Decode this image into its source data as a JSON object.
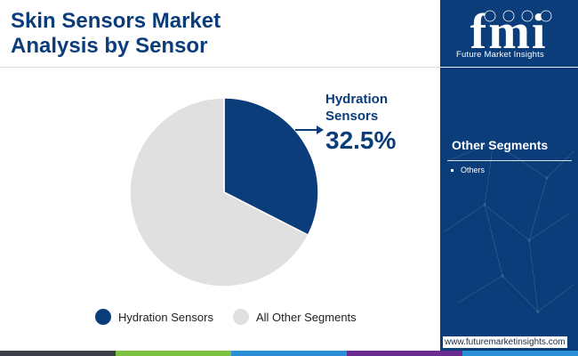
{
  "header": {
    "title_line1": "Skin Sensors Market",
    "title_line2": "Analysis by Sensor"
  },
  "chart_data": {
    "type": "pie",
    "title": "Skin Sensors Market Analysis by Sensor",
    "categories": [
      "Hydration Sensors",
      "All Other Segments"
    ],
    "values": [
      32.5,
      67.5
    ],
    "colors": [
      "#0b3d7a",
      "#e0e0e0"
    ],
    "legend_position": "bottom",
    "annotations": [
      {
        "category": "Hydration Sensors",
        "label": "Hydration Sensors",
        "value_text": "32.5%"
      }
    ]
  },
  "legend": {
    "items": [
      {
        "label": "Hydration Sensors",
        "color": "#0b3d7a"
      },
      {
        "label": "All Other Segments",
        "color": "#e0e0e0"
      }
    ]
  },
  "callout": {
    "label_line1": "Hydration",
    "label_line2": "Sensors",
    "value": "32.5%"
  },
  "panel": {
    "logo_letters": "fmi",
    "logo_tagline": "Future Market Insights",
    "segments_heading": "Other Segments",
    "segments": [
      "Others"
    ]
  },
  "footer": {
    "website": "www.futuremarketinsights.com"
  },
  "colors": {
    "brand": "#0b3d7a",
    "neutral": "#e0e0e0",
    "bar_segments": [
      "#3a3f45",
      "#7cc142",
      "#2a8fd6",
      "#6a2c91",
      "#2a8fd6"
    ]
  }
}
